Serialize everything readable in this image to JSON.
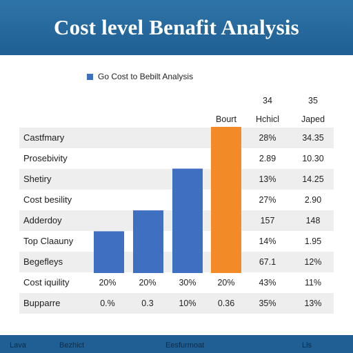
{
  "title": "Cost level Benafit Analysis",
  "footer_items": [
    "Lava",
    "Bezhict",
    "Eesfurmoat",
    "Lls"
  ],
  "chart_data": {
    "type": "bar",
    "title": "Cost level Benafit Analysis",
    "legend": [
      {
        "name": "Go Cost to Bebilt Analysis",
        "color": "#3f6fc0"
      }
    ],
    "column_headers": [
      "Bourt",
      "Hchicl",
      "Japed"
    ],
    "column_header_extras": [
      "34",
      "35"
    ],
    "rows": [
      {
        "label": "Castfmary",
        "col2": "28%",
        "col3": "34.35"
      },
      {
        "label": "Prosebivity",
        "col2": "2.89",
        "col3": "10.30"
      },
      {
        "label": "Shetiry",
        "col2": "13%",
        "col3": "14.25"
      },
      {
        "label": "Cost besility",
        "col2": "27%",
        "col3": "2.90"
      },
      {
        "label": "Adderdoy",
        "col2": "157",
        "col3": "148"
      },
      {
        "label": "Top Claauny",
        "col2": "14%",
        "col3": "1.95"
      },
      {
        "label": "Begefleys",
        "col2": "67.1",
        "col3": "12%"
      },
      {
        "label": "Cost iquility",
        "cells": [
          "20%",
          "20%",
          "30%",
          "20%",
          "43%",
          "11%"
        ]
      },
      {
        "label": "Bupparre",
        "cells": [
          "0.%",
          "0.3",
          "10%",
          "0.36",
          "35%",
          "13%"
        ]
      }
    ],
    "bars": [
      {
        "value": 2,
        "color": "#3f6fc0"
      },
      {
        "value": 3,
        "color": "#3f6fc0"
      },
      {
        "value": 5,
        "color": "#3f6fc0"
      },
      {
        "value": 7,
        "color": "#f28a28"
      }
    ],
    "ylim": [
      0,
      7
    ]
  },
  "colors": {
    "banner": "#1f5f93",
    "bar_blue": "#3f6fc0",
    "bar_orange": "#f28a28",
    "row_shade": "#eeeeee"
  }
}
